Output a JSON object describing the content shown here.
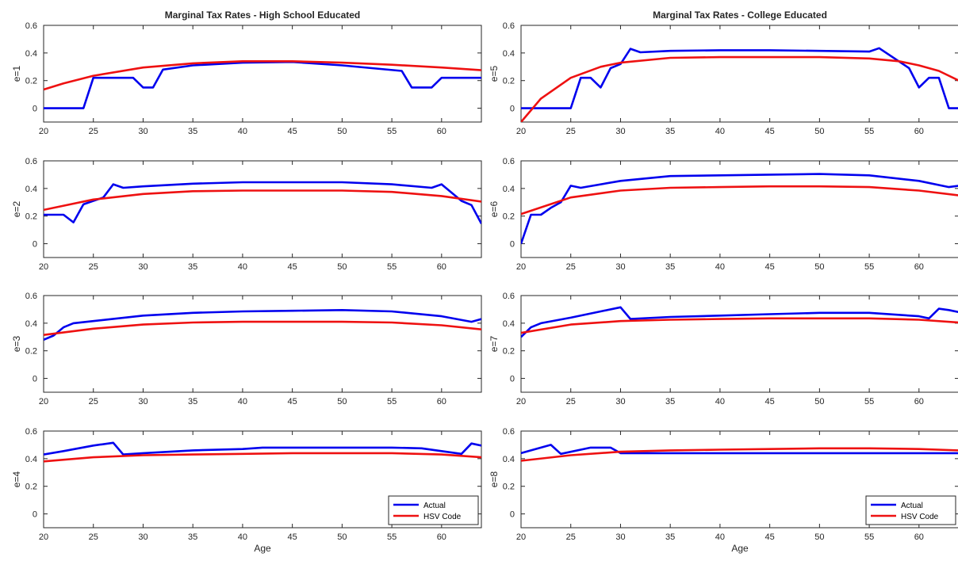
{
  "colors": {
    "actual": "#0000ee",
    "hsv": "#ee1111",
    "axis": "#262626"
  },
  "chart_data": [
    {
      "type": "line",
      "title": "Marginal Tax Rates - High School Educated",
      "ylabel": "e=1",
      "xlabel": "",
      "xlim": [
        20,
        64
      ],
      "ylim": [
        -0.1,
        0.6
      ],
      "xticks": [
        20,
        25,
        30,
        35,
        40,
        45,
        50,
        55,
        60
      ],
      "yticks": [
        0,
        0.2,
        0.4,
        0.6
      ],
      "grid": false,
      "legend": null,
      "series": [
        {
          "name": "Actual",
          "color": "#0000ee",
          "x": [
            20,
            24,
            25,
            29,
            30,
            31,
            32,
            35,
            40,
            45,
            50,
            56,
            57,
            59,
            60,
            64
          ],
          "y": [
            0,
            0,
            0.22,
            0.22,
            0.15,
            0.15,
            0.28,
            0.31,
            0.33,
            0.335,
            0.31,
            0.27,
            0.15,
            0.15,
            0.22,
            0.22
          ]
        },
        {
          "name": "HSV Code",
          "color": "#ee1111",
          "x": [
            20,
            22,
            25,
            30,
            35,
            40,
            45,
            50,
            55,
            60,
            64
          ],
          "y": [
            0.135,
            0.18,
            0.235,
            0.295,
            0.325,
            0.34,
            0.34,
            0.33,
            0.315,
            0.295,
            0.275
          ]
        }
      ]
    },
    {
      "type": "line",
      "title": "Marginal Tax Rates - College Educated",
      "ylabel": "e=5",
      "xlabel": "",
      "xlim": [
        20,
        64
      ],
      "ylim": [
        -0.1,
        0.6
      ],
      "xticks": [
        20,
        25,
        30,
        35,
        40,
        45,
        50,
        55,
        60
      ],
      "yticks": [
        0,
        0.2,
        0.4,
        0.6
      ],
      "grid": false,
      "legend": null,
      "series": [
        {
          "name": "Actual",
          "color": "#0000ee",
          "x": [
            20,
            25,
            26,
            27,
            28,
            29,
            30,
            31,
            32,
            35,
            40,
            45,
            50,
            55,
            56,
            59,
            60,
            61,
            62,
            63,
            64
          ],
          "y": [
            0,
            0,
            0.22,
            0.22,
            0.15,
            0.29,
            0.32,
            0.43,
            0.405,
            0.415,
            0.42,
            0.42,
            0.415,
            0.41,
            0.435,
            0.29,
            0.15,
            0.22,
            0.22,
            0,
            0
          ]
        },
        {
          "name": "HSV Code",
          "color": "#ee1111",
          "x": [
            20,
            22,
            25,
            28,
            30,
            35,
            40,
            45,
            50,
            55,
            58,
            60,
            62,
            64
          ],
          "y": [
            -0.1,
            0.07,
            0.22,
            0.3,
            0.33,
            0.365,
            0.37,
            0.37,
            0.37,
            0.36,
            0.34,
            0.31,
            0.27,
            0.2
          ]
        }
      ]
    },
    {
      "type": "line",
      "title": "",
      "ylabel": "e=2",
      "xlabel": "",
      "xlim": [
        20,
        64
      ],
      "ylim": [
        -0.1,
        0.6
      ],
      "xticks": [
        20,
        25,
        30,
        35,
        40,
        45,
        50,
        55,
        60
      ],
      "yticks": [
        0,
        0.2,
        0.4,
        0.6
      ],
      "grid": false,
      "legend": null,
      "series": [
        {
          "name": "Actual",
          "color": "#0000ee",
          "x": [
            20,
            22,
            23,
            24,
            25,
            26,
            27,
            28,
            30,
            35,
            40,
            45,
            50,
            55,
            59,
            60,
            62,
            63,
            64
          ],
          "y": [
            0.21,
            0.21,
            0.155,
            0.285,
            0.31,
            0.335,
            0.43,
            0.405,
            0.415,
            0.435,
            0.445,
            0.445,
            0.445,
            0.43,
            0.405,
            0.43,
            0.31,
            0.28,
            0.145
          ]
        },
        {
          "name": "HSV Code",
          "color": "#ee1111",
          "x": [
            20,
            25,
            30,
            35,
            40,
            45,
            50,
            55,
            60,
            64
          ],
          "y": [
            0.245,
            0.32,
            0.36,
            0.38,
            0.385,
            0.385,
            0.385,
            0.375,
            0.345,
            0.305
          ]
        }
      ]
    },
    {
      "type": "line",
      "title": "",
      "ylabel": "e=6",
      "xlabel": "",
      "xlim": [
        20,
        64
      ],
      "ylim": [
        -0.1,
        0.6
      ],
      "xticks": [
        20,
        25,
        30,
        35,
        40,
        45,
        50,
        55,
        60
      ],
      "yticks": [
        0,
        0.2,
        0.4,
        0.6
      ],
      "grid": false,
      "legend": null,
      "series": [
        {
          "name": "Actual",
          "color": "#0000ee",
          "x": [
            20,
            21,
            22,
            23,
            24,
            25,
            26,
            30,
            35,
            40,
            45,
            50,
            55,
            60,
            63,
            64
          ],
          "y": [
            0,
            0.21,
            0.21,
            0.26,
            0.3,
            0.42,
            0.405,
            0.455,
            0.49,
            0.495,
            0.5,
            0.505,
            0.495,
            0.455,
            0.41,
            0.42
          ]
        },
        {
          "name": "HSV Code",
          "color": "#ee1111",
          "x": [
            20,
            25,
            30,
            35,
            40,
            45,
            50,
            55,
            60,
            64
          ],
          "y": [
            0.215,
            0.335,
            0.385,
            0.405,
            0.41,
            0.415,
            0.415,
            0.41,
            0.385,
            0.35
          ]
        }
      ]
    },
    {
      "type": "line",
      "title": "",
      "ylabel": "e=3",
      "xlabel": "",
      "xlim": [
        20,
        64
      ],
      "ylim": [
        -0.1,
        0.6
      ],
      "xticks": [
        20,
        25,
        30,
        35,
        40,
        45,
        50,
        55,
        60
      ],
      "yticks": [
        0,
        0.2,
        0.4,
        0.6
      ],
      "grid": false,
      "legend": null,
      "series": [
        {
          "name": "Actual",
          "color": "#0000ee",
          "x": [
            20,
            21,
            22,
            23,
            25,
            30,
            35,
            40,
            45,
            50,
            55,
            60,
            63,
            64
          ],
          "y": [
            0.28,
            0.31,
            0.37,
            0.4,
            0.415,
            0.455,
            0.475,
            0.485,
            0.49,
            0.495,
            0.485,
            0.45,
            0.41,
            0.43
          ]
        },
        {
          "name": "HSV Code",
          "color": "#ee1111",
          "x": [
            20,
            25,
            30,
            35,
            40,
            45,
            50,
            55,
            60,
            64
          ],
          "y": [
            0.315,
            0.36,
            0.39,
            0.405,
            0.41,
            0.41,
            0.41,
            0.405,
            0.385,
            0.355
          ]
        }
      ]
    },
    {
      "type": "line",
      "title": "",
      "ylabel": "e=7",
      "xlabel": "",
      "xlim": [
        20,
        64
      ],
      "ylim": [
        -0.1,
        0.6
      ],
      "xticks": [
        20,
        25,
        30,
        35,
        40,
        45,
        50,
        55,
        60
      ],
      "yticks": [
        0,
        0.2,
        0.4,
        0.6
      ],
      "grid": false,
      "legend": null,
      "series": [
        {
          "name": "Actual",
          "color": "#0000ee",
          "x": [
            20,
            21,
            22,
            25,
            28,
            30,
            31,
            35,
            40,
            45,
            50,
            55,
            60,
            61,
            62,
            63,
            64
          ],
          "y": [
            0.3,
            0.37,
            0.4,
            0.44,
            0.485,
            0.515,
            0.43,
            0.445,
            0.455,
            0.465,
            0.475,
            0.475,
            0.45,
            0.435,
            0.505,
            0.495,
            0.48
          ]
        },
        {
          "name": "HSV Code",
          "color": "#ee1111",
          "x": [
            20,
            25,
            30,
            35,
            40,
            45,
            50,
            55,
            60,
            64
          ],
          "y": [
            0.33,
            0.39,
            0.415,
            0.425,
            0.43,
            0.435,
            0.435,
            0.435,
            0.425,
            0.405
          ]
        }
      ]
    },
    {
      "type": "line",
      "title": "",
      "ylabel": "e=4",
      "xlabel": "Age",
      "xlim": [
        20,
        64
      ],
      "ylim": [
        -0.1,
        0.6
      ],
      "xticks": [
        20,
        25,
        30,
        35,
        40,
        45,
        50,
        55,
        60
      ],
      "yticks": [
        0,
        0.2,
        0.4,
        0.6
      ],
      "grid": false,
      "legend": "bottom-right",
      "series": [
        {
          "name": "Actual",
          "color": "#0000ee",
          "x": [
            20,
            22,
            25,
            27,
            28,
            30,
            35,
            40,
            42,
            45,
            50,
            55,
            58,
            60,
            62,
            63,
            64
          ],
          "y": [
            0.43,
            0.455,
            0.495,
            0.515,
            0.43,
            0.44,
            0.46,
            0.47,
            0.48,
            0.48,
            0.48,
            0.48,
            0.475,
            0.455,
            0.435,
            0.51,
            0.495
          ]
        },
        {
          "name": "HSV Code",
          "color": "#ee1111",
          "x": [
            20,
            25,
            30,
            35,
            40,
            45,
            50,
            55,
            60,
            64
          ],
          "y": [
            0.38,
            0.41,
            0.425,
            0.43,
            0.435,
            0.44,
            0.44,
            0.44,
            0.43,
            0.41
          ]
        }
      ]
    },
    {
      "type": "line",
      "title": "",
      "ylabel": "e=8",
      "xlabel": "Age",
      "xlim": [
        20,
        64
      ],
      "ylim": [
        -0.1,
        0.6
      ],
      "xticks": [
        20,
        25,
        30,
        35,
        40,
        45,
        50,
        55,
        60
      ],
      "yticks": [
        0,
        0.2,
        0.4,
        0.6
      ],
      "grid": false,
      "legend": "bottom-right",
      "series": [
        {
          "name": "Actual",
          "color": "#0000ee",
          "x": [
            20,
            23,
            24,
            27,
            29,
            30,
            35,
            40,
            45,
            50,
            55,
            60,
            64
          ],
          "y": [
            0.44,
            0.5,
            0.435,
            0.48,
            0.48,
            0.44,
            0.44,
            0.44,
            0.44,
            0.44,
            0.44,
            0.44,
            0.44
          ]
        },
        {
          "name": "HSV Code",
          "color": "#ee1111",
          "x": [
            20,
            25,
            30,
            35,
            40,
            45,
            50,
            55,
            60,
            64
          ],
          "y": [
            0.385,
            0.425,
            0.45,
            0.46,
            0.465,
            0.47,
            0.475,
            0.475,
            0.47,
            0.46
          ]
        }
      ]
    }
  ]
}
